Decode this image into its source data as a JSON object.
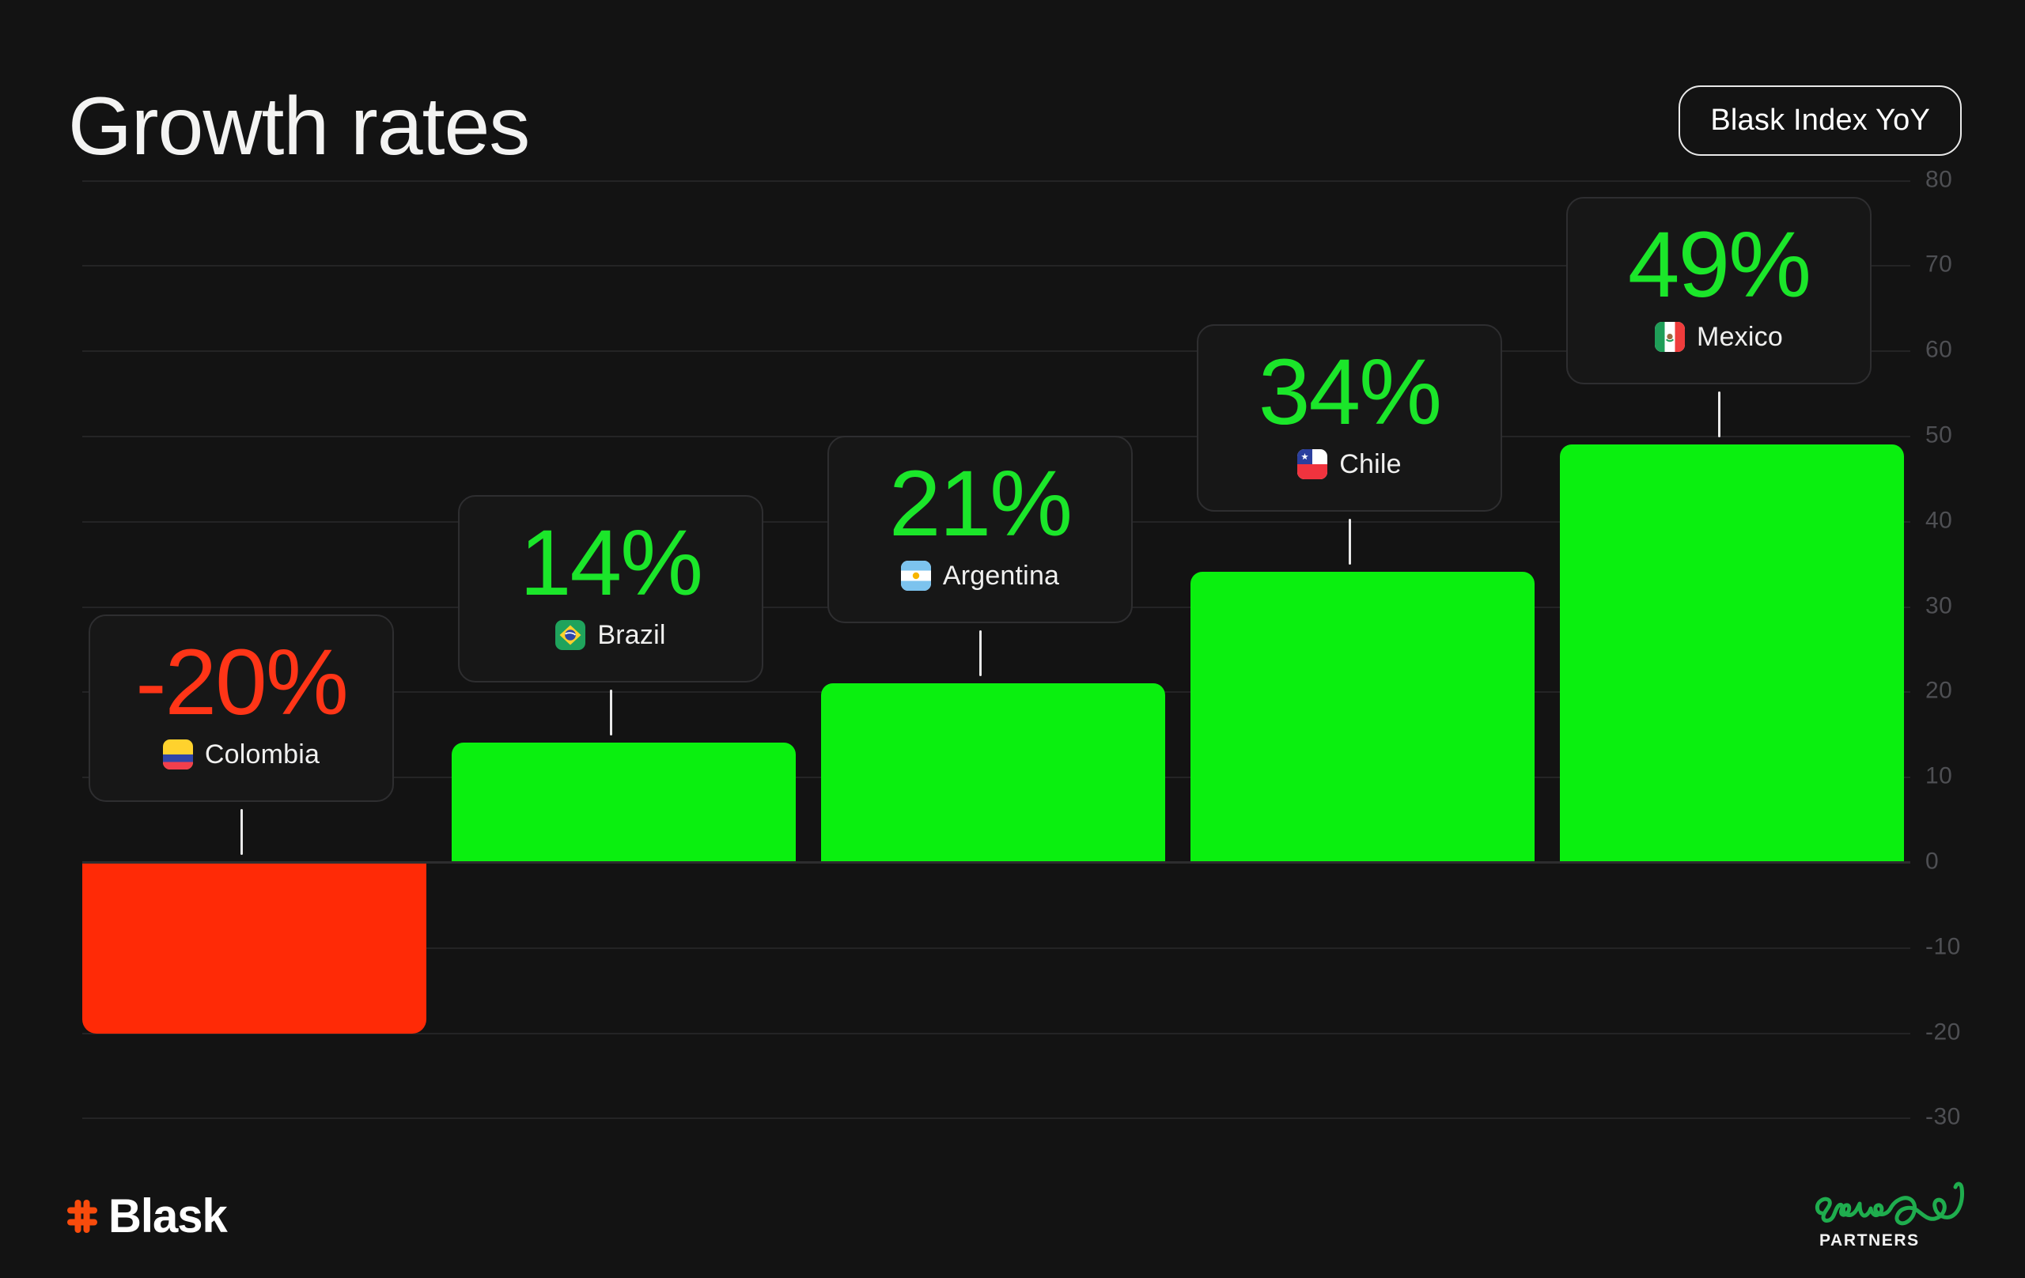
{
  "header": {
    "title": "Growth rates",
    "badge": "Blask Index YoY"
  },
  "chart_data": {
    "type": "bar",
    "categories": [
      "Colombia",
      "Brazil",
      "Argentina",
      "Chile",
      "Mexico"
    ],
    "values": [
      -20,
      14,
      21,
      34,
      49
    ],
    "value_labels": [
      "-20%",
      "14%",
      "21%",
      "34%",
      "49%"
    ],
    "flags": [
      "co",
      "br",
      "ar",
      "cl",
      "mx"
    ],
    "title": "Growth rates",
    "xlabel": "",
    "ylabel": "",
    "ylim": [
      -30,
      80
    ],
    "yticks": [
      80,
      70,
      60,
      50,
      40,
      30,
      20,
      10,
      0,
      -10,
      -20,
      -30
    ],
    "grid": "horizontal",
    "legend": "none",
    "axis_side": "right",
    "tooltip_style": "card-above-bar-with-flag"
  },
  "footer": {
    "blask": "Blask",
    "partners_caption": "PARTNERS",
    "partners_script_word": "growe"
  },
  "colors": {
    "background": "#131313",
    "card_bg": "#171717",
    "card_border": "#2E2E30",
    "grid_line": "#242425",
    "zero_line": "#2D2D2F",
    "axis_label": "#4E4F53",
    "text_primary": "#F3F3F2",
    "positive": "#0AF00F",
    "negative": "#FF2A06",
    "positive_text": "#1BE62A",
    "negative_text": "#FF3517",
    "connector": "#E9E9E9",
    "blask_orange": "#F84B0C",
    "growe_green": "#1FAD4E"
  }
}
